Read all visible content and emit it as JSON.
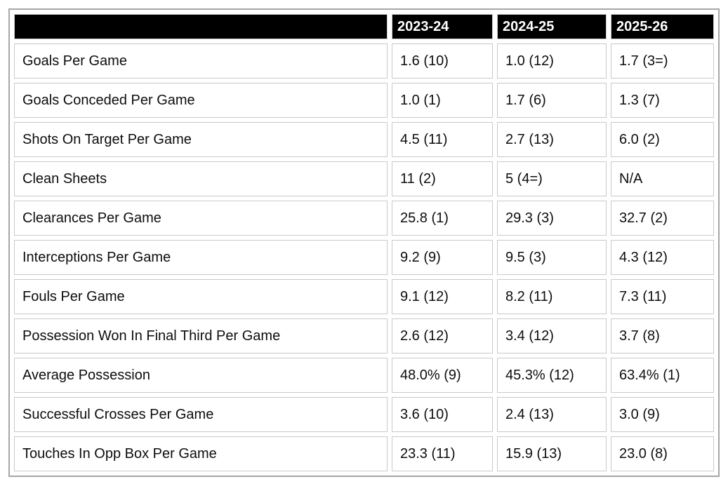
{
  "chart_data": {
    "type": "table",
    "columns": [
      "",
      "2023-24",
      "2024-25",
      "2025-26"
    ],
    "rows": [
      {
        "label": "Goals Per Game",
        "values": [
          "1.6 (10)",
          "1.0 (12)",
          "1.7 (3=)"
        ]
      },
      {
        "label": "Goals Conceded Per Game",
        "values": [
          "1.0 (1)",
          "1.7 (6)",
          "1.3 (7)"
        ]
      },
      {
        "label": "Shots On Target Per Game",
        "values": [
          "4.5 (11)",
          "2.7 (13)",
          "6.0 (2)"
        ]
      },
      {
        "label": "Clean Sheets",
        "values": [
          "11 (2)",
          "5 (4=)",
          "N/A"
        ]
      },
      {
        "label": "Clearances Per Game",
        "values": [
          "25.8 (1)",
          "29.3 (3)",
          "32.7 (2)"
        ]
      },
      {
        "label": "Interceptions Per Game",
        "values": [
          "9.2 (9)",
          "9.5 (3)",
          "4.3 (12)"
        ]
      },
      {
        "label": "Fouls Per Game",
        "values": [
          "9.1 (12)",
          "8.2 (11)",
          "7.3 (11)"
        ]
      },
      {
        "label": "Possession Won In Final Third Per Game",
        "values": [
          "2.6 (12)",
          "3.4 (12)",
          "3.7 (8)"
        ]
      },
      {
        "label": "Average Possession",
        "values": [
          "48.0% (9)",
          "45.3% (12)",
          "63.4% (1)"
        ]
      },
      {
        "label": "Successful Crosses Per Game",
        "values": [
          "3.6 (10)",
          "2.4 (13)",
          "3.0 (9)"
        ]
      },
      {
        "label": "Touches In Opp Box Per Game",
        "values": [
          "23.3 (11)",
          "15.9 (13)",
          "23.0 (8)"
        ]
      }
    ],
    "layout_hints": {
      "header_position": "top",
      "grid": true
    }
  },
  "colors": {
    "header_bg": "#000000",
    "header_text": "#ffffff",
    "cell_border": "#c9c9c9",
    "outer_border": "#a6a6a6",
    "body_text": "#0d0d0d",
    "page_bg": "#ffffff"
  }
}
